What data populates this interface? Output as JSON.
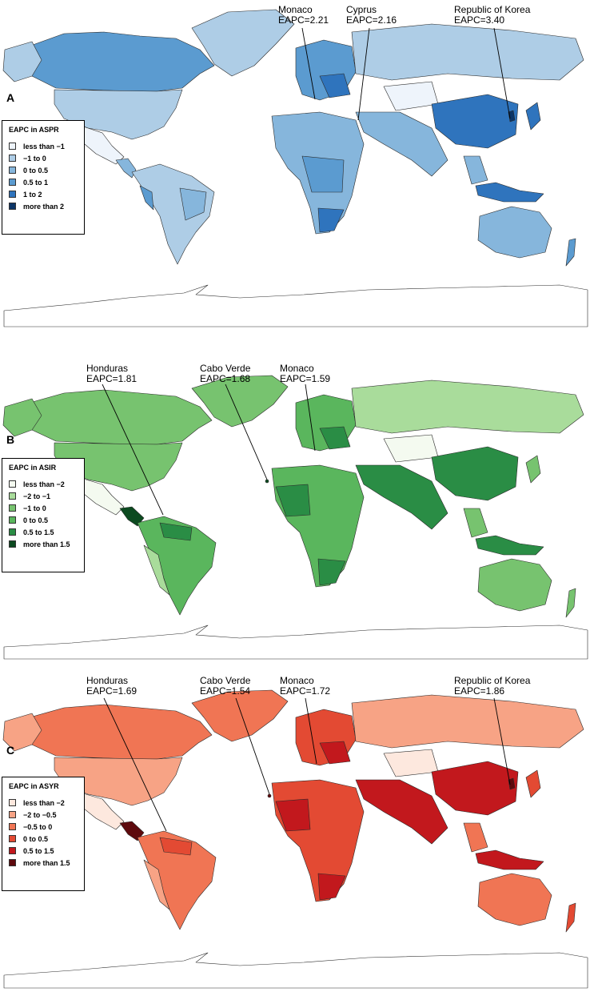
{
  "panels": [
    {
      "letter": "A",
      "legend": {
        "title": "EAPC in ASPR",
        "items": [
          {
            "label": "less than −1",
            "color": "#eef4fb"
          },
          {
            "label": "−1 to 0",
            "color": "#aecde6"
          },
          {
            "label": "0 to 0.5",
            "color": "#86b6dc"
          },
          {
            "label": "0.5 to 1",
            "color": "#5b9bd0"
          },
          {
            "label": "1 to 2",
            "color": "#2f74bd"
          },
          {
            "label": "more than 2",
            "color": "#0c3566"
          }
        ]
      },
      "callouts": [
        {
          "country": "Monaco",
          "value": "EAPC=2.21"
        },
        {
          "country": "Cyprus",
          "value": "EAPC=2.16"
        },
        {
          "country": "Republic of Korea",
          "value": "EAPC=3.40"
        }
      ]
    },
    {
      "letter": "B",
      "legend": {
        "title": "EAPC in ASIR",
        "items": [
          {
            "label": "less than −2",
            "color": "#f4faf0"
          },
          {
            "label": "−2 to −1",
            "color": "#a9dc9b"
          },
          {
            "label": "−1 to 0",
            "color": "#77c36f"
          },
          {
            "label": "0 to 0.5",
            "color": "#5ab65d"
          },
          {
            "label": "0.5 to 1.5",
            "color": "#2a8d45"
          },
          {
            "label": "more than 1.5",
            "color": "#0c4a20"
          }
        ]
      },
      "callouts": [
        {
          "country": "Honduras",
          "value": "EAPC=1.81"
        },
        {
          "country": "Cabo Verde",
          "value": "EAPC=1.68"
        },
        {
          "country": "Monaco",
          "value": "EAPC=1.59"
        }
      ]
    },
    {
      "letter": "C",
      "legend": {
        "title": "EAPC in ASYR",
        "items": [
          {
            "label": "less than −2",
            "color": "#fde8de"
          },
          {
            "label": "−2 to −0.5",
            "color": "#f7a385"
          },
          {
            "label": "−0.5 to 0",
            "color": "#f07554"
          },
          {
            "label": "0 to 0.5",
            "color": "#e34a33"
          },
          {
            "label": "0.5 to 1.5",
            "color": "#c2181d"
          },
          {
            "label": "more than 1.5",
            "color": "#5e0a0d"
          }
        ]
      },
      "callouts": [
        {
          "country": "Honduras",
          "value": "EAPC=1.69"
        },
        {
          "country": "Cabo Verde",
          "value": "EAPC=1.54"
        },
        {
          "country": "Monaco",
          "value": "EAPC=1.72"
        },
        {
          "country": "Republic of Korea",
          "value": "EAPC=1.86"
        }
      ]
    }
  ]
}
